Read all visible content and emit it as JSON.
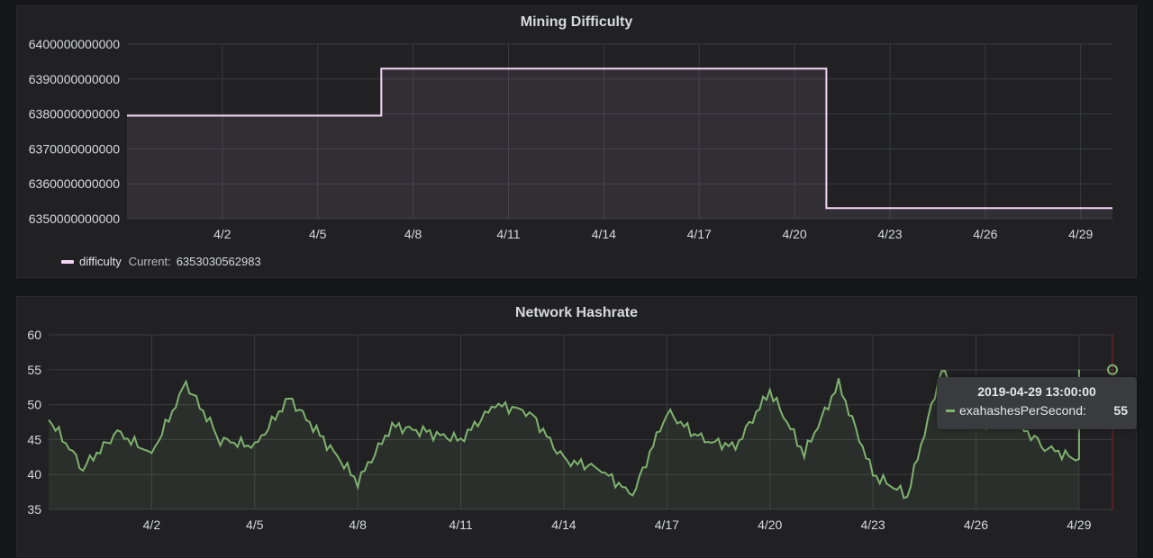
{
  "chart_data": [
    {
      "type": "line",
      "title": "Mining Difficulty",
      "series": [
        {
          "name": "difficulty",
          "color": "#f4d5f4",
          "x": [
            "2019-03-30",
            "2019-04-07",
            "2019-04-07",
            "2019-04-21",
            "2019-04-21",
            "2019-04-30"
          ],
          "values": [
            6379500000000,
            6379500000000,
            6393000000000,
            6393000000000,
            6353030562983,
            6353030562983
          ]
        }
      ],
      "xlim": [
        "2019-03-30",
        "2019-04-30"
      ],
      "ylim": [
        6350000000000,
        6400000000000
      ],
      "y_ticks": [
        "6350000000000",
        "6360000000000",
        "6370000000000",
        "6380000000000",
        "6390000000000",
        "6400000000000"
      ],
      "x_ticks": [
        "4/2",
        "4/5",
        "4/8",
        "4/11",
        "4/14",
        "4/17",
        "4/20",
        "4/23",
        "4/26",
        "4/29"
      ],
      "legend": {
        "name": "difficulty",
        "current_label": "Current:",
        "current_value": "6353030562983",
        "position": "bottom-left"
      },
      "grid": true
    },
    {
      "type": "area",
      "title": "Network Hashrate",
      "series": [
        {
          "name": "exahashesPerSecond",
          "color": "#7eb26d",
          "x": [
            "2019-03-30",
            "2019-03-31",
            "2019-04-01",
            "2019-04-02",
            "2019-04-03",
            "2019-04-04",
            "2019-04-05",
            "2019-04-06",
            "2019-04-07",
            "2019-04-08",
            "2019-04-09",
            "2019-04-10",
            "2019-04-11",
            "2019-04-12",
            "2019-04-13",
            "2019-04-14",
            "2019-04-15",
            "2019-04-16",
            "2019-04-17",
            "2019-04-18",
            "2019-04-19",
            "2019-04-20",
            "2019-04-21",
            "2019-04-22",
            "2019-04-23",
            "2019-04-24",
            "2019-04-25",
            "2019-04-26",
            "2019-04-27",
            "2019-04-28",
            "2019-04-29",
            "2019-04-29"
          ],
          "values": [
            48,
            41,
            46,
            43,
            53,
            45,
            44,
            51,
            45,
            39,
            47,
            46,
            45,
            50,
            49,
            42,
            41,
            37,
            49,
            45,
            44,
            52,
            43,
            53,
            40,
            37,
            55,
            47,
            48,
            44,
            42,
            55
          ]
        }
      ],
      "xlim": [
        "2019-03-30",
        "2019-04-30"
      ],
      "ylim": [
        35,
        60
      ],
      "y_ticks": [
        "35",
        "40",
        "45",
        "50",
        "55",
        "60"
      ],
      "x_ticks": [
        "4/2",
        "4/5",
        "4/8",
        "4/11",
        "4/14",
        "4/17",
        "4/20",
        "4/23",
        "4/26",
        "4/29"
      ],
      "grid": true,
      "tooltip": {
        "time": "2019-04-29 13:00:00",
        "series": "exahashesPerSecond:",
        "value": "55"
      }
    }
  ]
}
